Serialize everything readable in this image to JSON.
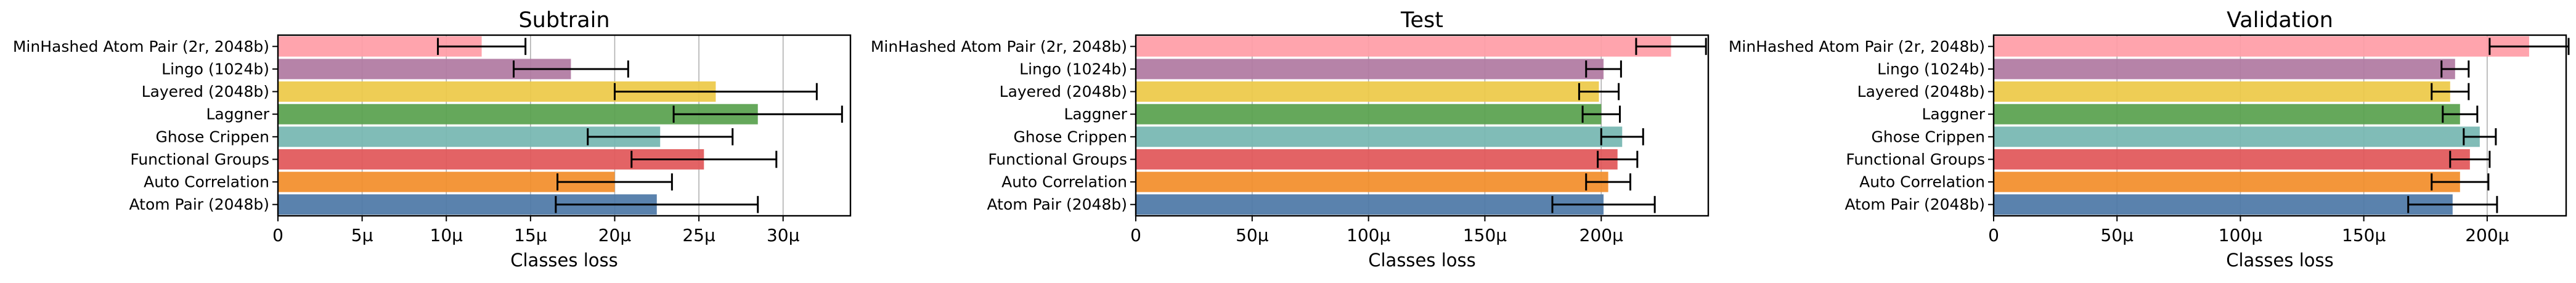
{
  "colors": [
    "#4e79a7",
    "#f28e2b",
    "#e15759",
    "#76b7b2",
    "#59a14f",
    "#edc948",
    "#b07aa1",
    "#ff9da7"
  ],
  "chart_data": [
    {
      "type": "bar",
      "orientation": "horizontal",
      "title": "Subtrain",
      "xlabel": "Classes loss",
      "categories": [
        "Atom Pair (2048b)",
        "Auto Correlation",
        "Functional Groups",
        "Ghose Crippen",
        "Laggner",
        "Layered (2048b)",
        "Lingo (1024b)",
        "MinHashed Atom Pair (2r, 2048b)"
      ],
      "values": [
        2.25e-05,
        2e-05,
        2.53e-05,
        2.27e-05,
        2.85e-05,
        2.6e-05,
        1.74e-05,
        1.21e-05
      ],
      "error": [
        6e-06,
        3.4e-06,
        4.3e-06,
        4.3e-06,
        5e-06,
        6e-06,
        3.4e-06,
        2.6e-06
      ],
      "xlim": [
        0,
        3.4e-05
      ],
      "xticks": [
        0,
        5e-06,
        1e-05,
        1.5e-05,
        2e-05,
        2.5e-05,
        3e-05
      ],
      "xtick_labels": [
        "0",
        "5µ",
        "10µ",
        "15µ",
        "20µ",
        "25µ",
        "30µ"
      ],
      "grid": "x"
    },
    {
      "type": "bar",
      "orientation": "horizontal",
      "title": "Test",
      "xlabel": "Classes loss",
      "categories": [
        "Atom Pair (2048b)",
        "Auto Correlation",
        "Functional Groups",
        "Ghose Crippen",
        "Laggner",
        "Layered (2048b)",
        "Lingo (1024b)",
        "MinHashed Atom Pair (2r, 2048b)"
      ],
      "values": [
        0.000201,
        0.000203,
        0.000207,
        0.000209,
        0.0002,
        0.000199,
        0.000201,
        0.00023
      ],
      "error": [
        2.2e-05,
        9.5e-06,
        8.5e-06,
        9e-06,
        8e-06,
        8.5e-06,
        7.5e-06,
        1.5e-05
      ],
      "xlim": [
        0,
        0.000246
      ],
      "xticks": [
        0,
        5e-05,
        0.0001,
        0.00015,
        0.0002
      ],
      "xtick_labels": [
        "0",
        "50µ",
        "100µ",
        "150µ",
        "200µ"
      ],
      "grid": "x"
    },
    {
      "type": "bar",
      "orientation": "horizontal",
      "title": "Validation",
      "xlabel": "Classes loss",
      "categories": [
        "Atom Pair (2048b)",
        "Auto Correlation",
        "Functional Groups",
        "Ghose Crippen",
        "Laggner",
        "Layered (2048b)",
        "Lingo (1024b)",
        "MinHashed Atom Pair (2r, 2048b)"
      ],
      "values": [
        0.000186,
        0.000189,
        0.000193,
        0.000197,
        0.000189,
        0.000185,
        0.000187,
        0.000217
      ],
      "error": [
        1.8e-05,
        1.15e-05,
        8e-06,
        6.5e-06,
        7e-06,
        7.5e-06,
        5.5e-06,
        1.6e-05
      ],
      "xlim": [
        0,
        0.000232
      ],
      "xticks": [
        0,
        5e-05,
        0.0001,
        0.00015,
        0.0002
      ],
      "xtick_labels": [
        "0",
        "50µ",
        "100µ",
        "150µ",
        "200µ"
      ],
      "grid": "x"
    }
  ]
}
